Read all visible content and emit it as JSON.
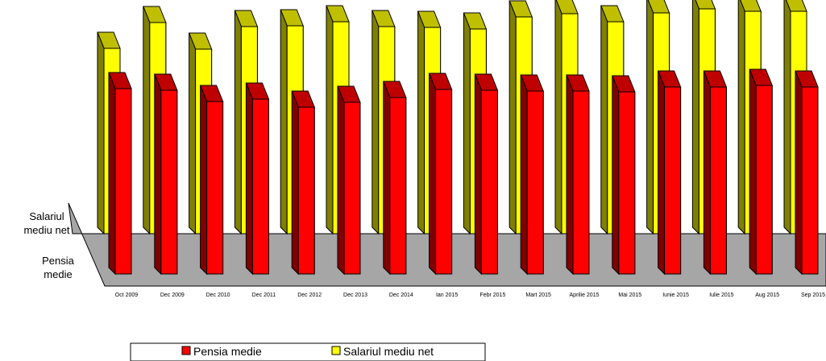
{
  "chart_data": {
    "type": "bar",
    "categories": [
      "Oct 2009",
      "Dec 2009",
      "Dec 2010",
      "Dec 2011",
      "Dec 2012",
      "Dec 2013",
      "Dec 2014",
      "Ian 2015",
      "Febr 2015",
      "Mart 2015",
      "Aprilie 2015",
      "Mai 2015",
      "Iunie 2015",
      "Iulie 2015",
      "Aug 2015",
      "Sep 2015"
    ],
    "series": [
      {
        "name": "Pensia medie",
        "color": "#ff0000",
        "values": [
          230,
          228,
          214,
          217,
          207,
          213,
          219,
          229,
          228,
          227,
          227,
          226,
          232,
          232,
          234,
          232
        ]
      },
      {
        "name": "Salariul mediu net",
        "color": "#ffff00",
        "values": [
          230,
          262,
          229,
          257,
          258,
          263,
          257,
          256,
          254,
          269,
          273,
          263,
          274,
          279,
          276,
          276
        ]
      }
    ],
    "depth_labels": [
      "Pensia medie",
      "Salariul mediu net"
    ],
    "legend": {
      "position": "bottom"
    },
    "grid": false,
    "three_d": true,
    "colors": {
      "floor": "#a6a6a6",
      "outline": "#000000"
    }
  }
}
